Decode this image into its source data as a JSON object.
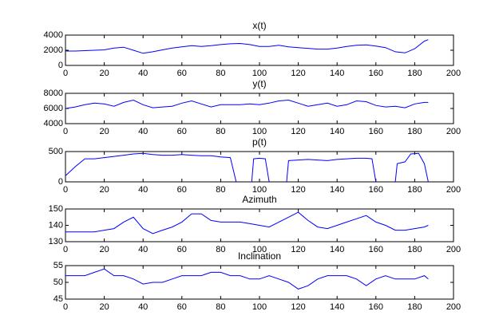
{
  "chart_data": [
    {
      "type": "line",
      "title": "x(t)",
      "color": "#0000ff",
      "x": [
        0,
        5,
        10,
        15,
        20,
        25,
        30,
        35,
        40,
        45,
        50,
        55,
        60,
        65,
        70,
        75,
        80,
        85,
        90,
        95,
        100,
        105,
        110,
        115,
        120,
        125,
        130,
        135,
        140,
        145,
        150,
        155,
        160,
        165,
        170,
        175,
        180,
        185,
        187
      ],
      "values": [
        1900,
        1900,
        1950,
        2000,
        2050,
        2300,
        2400,
        2000,
        1600,
        1800,
        2050,
        2300,
        2450,
        2600,
        2500,
        2600,
        2750,
        2850,
        2900,
        2750,
        2500,
        2500,
        2650,
        2450,
        2350,
        2250,
        2150,
        2150,
        2300,
        2500,
        2650,
        2700,
        2550,
        2350,
        1800,
        1650,
        2200,
        3200,
        3400
      ],
      "xlim": [
        0,
        200
      ],
      "xticks": [
        0,
        20,
        40,
        60,
        80,
        100,
        120,
        140,
        160,
        180,
        200
      ],
      "ylim": [
        0,
        4000
      ],
      "yticks": [
        0,
        2000,
        4000
      ]
    },
    {
      "type": "line",
      "title": "y(t)",
      "color": "#0000ff",
      "x": [
        0,
        5,
        10,
        15,
        20,
        25,
        30,
        35,
        40,
        45,
        50,
        55,
        60,
        65,
        70,
        75,
        80,
        85,
        90,
        95,
        100,
        105,
        110,
        115,
        120,
        125,
        130,
        135,
        140,
        145,
        150,
        155,
        160,
        165,
        170,
        175,
        180,
        185,
        187
      ],
      "values": [
        6000,
        6200,
        6500,
        6700,
        6600,
        6300,
        6800,
        7100,
        6500,
        6100,
        6200,
        6300,
        6700,
        7000,
        6600,
        6200,
        6500,
        6500,
        6500,
        6600,
        6500,
        6700,
        7000,
        7100,
        6700,
        6300,
        6500,
        6700,
        6300,
        6500,
        7000,
        6900,
        6400,
        6200,
        6300,
        6100,
        6600,
        6800,
        6800
      ],
      "xlim": [
        0,
        200
      ],
      "xticks": [
        0,
        20,
        40,
        60,
        80,
        100,
        120,
        140,
        160,
        180,
        200
      ],
      "ylim": [
        4000,
        8000
      ],
      "yticks": [
        4000,
        6000,
        8000
      ]
    },
    {
      "type": "line",
      "title": "p(t)",
      "color": "#0000ff",
      "x": [
        0,
        5,
        10,
        15,
        20,
        25,
        30,
        35,
        40,
        45,
        50,
        55,
        60,
        65,
        70,
        75,
        80,
        85,
        88,
        90,
        96,
        97,
        100,
        103,
        105,
        108,
        114,
        115,
        120,
        125,
        130,
        135,
        140,
        145,
        150,
        155,
        158,
        160,
        165,
        170,
        171,
        175,
        178,
        182,
        185,
        187
      ],
      "values": [
        100,
        250,
        380,
        380,
        400,
        420,
        440,
        460,
        470,
        450,
        440,
        440,
        450,
        440,
        430,
        430,
        410,
        400,
        0,
        null,
        0,
        380,
        390,
        380,
        0,
        null,
        0,
        350,
        360,
        370,
        360,
        350,
        370,
        380,
        390,
        390,
        380,
        0,
        null,
        0,
        300,
        330,
        460,
        470,
        300,
        0
      ],
      "xlim": [
        0,
        200
      ],
      "xticks": [
        0,
        20,
        40,
        60,
        80,
        100,
        120,
        140,
        160,
        180,
        200
      ],
      "ylim": [
        0,
        500
      ],
      "yticks": [
        0,
        500
      ]
    },
    {
      "type": "line",
      "title": "Azimuth",
      "color": "#0000ff",
      "x": [
        0,
        5,
        10,
        15,
        20,
        25,
        30,
        35,
        40,
        45,
        50,
        55,
        60,
        65,
        70,
        75,
        80,
        85,
        90,
        95,
        100,
        105,
        110,
        115,
        120,
        125,
        130,
        135,
        140,
        145,
        150,
        155,
        160,
        165,
        170,
        175,
        180,
        185,
        187
      ],
      "values": [
        136,
        136,
        136,
        136,
        137,
        138,
        142,
        145,
        138,
        135,
        137,
        139,
        142,
        147,
        147,
        143,
        142,
        142,
        142,
        141,
        140,
        139,
        142,
        145,
        148,
        143,
        139,
        138,
        140,
        142,
        144,
        146,
        142,
        140,
        137,
        137,
        138,
        139,
        140
      ],
      "xlim": [
        0,
        200
      ],
      "xticks": [
        0,
        20,
        40,
        60,
        80,
        100,
        120,
        140,
        160,
        180,
        200
      ],
      "ylim": [
        130,
        150
      ],
      "yticks": [
        130,
        140,
        150
      ]
    },
    {
      "type": "line",
      "title": "Inclination",
      "color": "#0000ff",
      "x": [
        0,
        5,
        10,
        15,
        20,
        25,
        30,
        35,
        40,
        45,
        50,
        55,
        60,
        65,
        70,
        75,
        80,
        85,
        90,
        95,
        100,
        105,
        110,
        115,
        120,
        125,
        130,
        135,
        140,
        145,
        150,
        155,
        160,
        165,
        170,
        175,
        180,
        185,
        187
      ],
      "values": [
        52,
        52,
        52,
        53,
        54,
        52,
        52,
        51,
        49.5,
        50,
        50,
        51,
        52,
        52,
        52,
        53,
        53,
        52,
        52,
        51,
        51,
        52,
        51,
        50,
        48,
        49,
        51,
        52,
        52,
        52,
        51,
        49,
        51,
        52,
        51,
        51,
        51,
        52,
        51
      ],
      "xlim": [
        0,
        200
      ],
      "xticks": [
        0,
        20,
        40,
        60,
        80,
        100,
        120,
        140,
        160,
        180,
        200
      ],
      "ylim": [
        45,
        55
      ],
      "yticks": [
        45,
        50,
        55
      ]
    }
  ]
}
